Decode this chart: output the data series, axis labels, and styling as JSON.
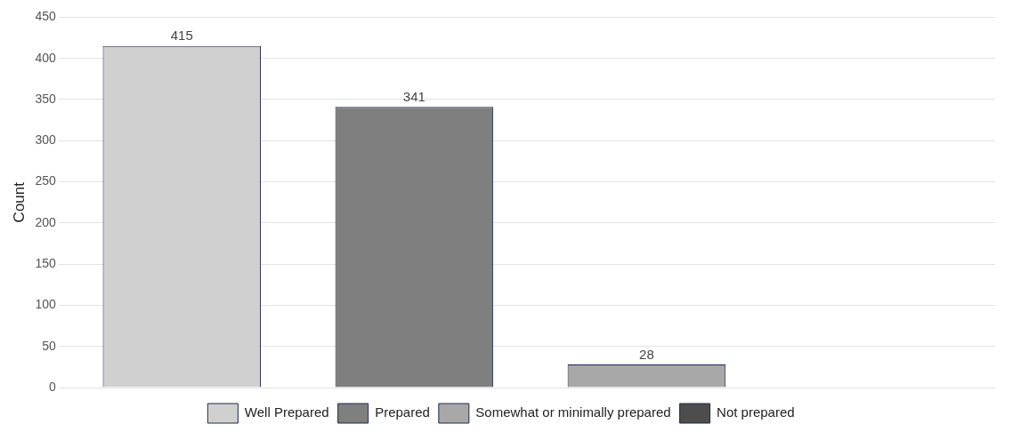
{
  "chart_data": {
    "type": "bar",
    "ylabel": "Count",
    "categories": [
      null
    ],
    "series": [
      {
        "name": "Well Prepared",
        "color": "#d0d0d0",
        "values": [
          415
        ],
        "value_labels": [
          "415"
        ]
      },
      {
        "name": "Prepared",
        "color": "#7f7f7f",
        "values": [
          341
        ],
        "value_labels": [
          "341"
        ]
      },
      {
        "name": "Somewhat or minimally prepared",
        "color": "#a8a8a8",
        "values": [
          28
        ],
        "value_labels": [
          "28"
        ]
      },
      {
        "name": "Not prepared",
        "color": "#4d4d4d",
        "values": [
          0
        ],
        "value_labels": [
          null
        ]
      }
    ],
    "ylim": [
      0,
      450
    ],
    "yticks": [
      0,
      50,
      100,
      150,
      200,
      250,
      300,
      350,
      400,
      450
    ],
    "grid": "y",
    "legend": "bottom",
    "tick_labels": "y"
  }
}
